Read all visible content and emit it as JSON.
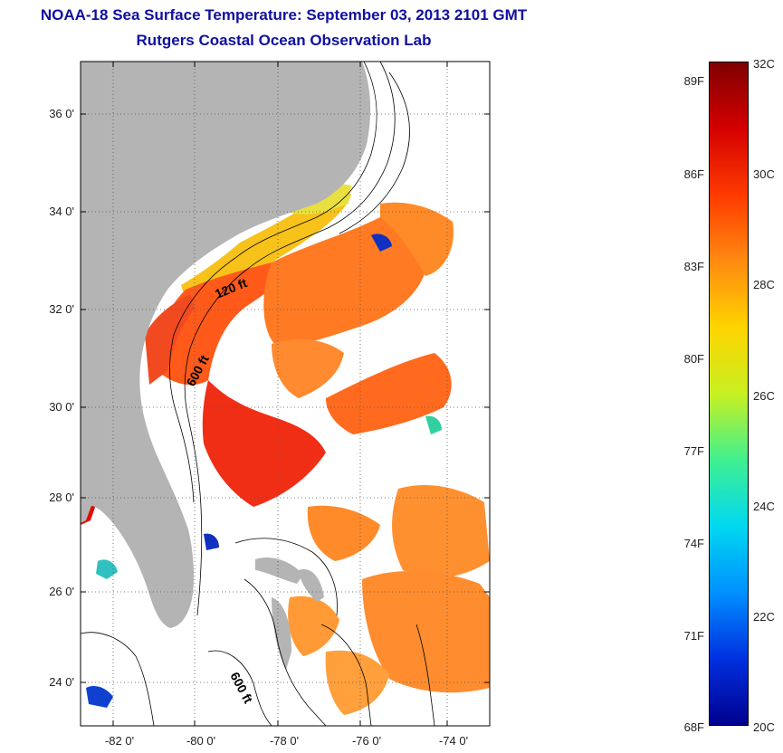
{
  "title": {
    "line1": "NOAA-18 Sea Surface Temperature:  September 03, 2013 2101 GMT",
    "line2": "Rutgers Coastal Ocean Observation Lab"
  },
  "axes": {
    "lat_labels": [
      "36 0'",
      "34 0'",
      "32 0'",
      "30 0'",
      "28 0'",
      "26 0'",
      "24 0'"
    ],
    "lon_labels": [
      "-82 0'",
      "-80 0'",
      "-78 0'",
      "-76 0'",
      "-74 0'"
    ]
  },
  "contours": {
    "label_120": "120 ft",
    "label_600a": "600 ft",
    "label_600b": "600 ft"
  },
  "colorbar": {
    "fahrenheit": [
      "89F",
      "86F",
      "83F",
      "80F",
      "77F",
      "74F",
      "71F",
      "68F"
    ],
    "celsius": [
      "32C",
      "30C",
      "28C",
      "26C",
      "24C",
      "22C",
      "20C"
    ],
    "colors": [
      "#7f0000",
      "#d40000",
      "#ff3a00",
      "#ff8a10",
      "#ffd400",
      "#c8f020",
      "#40f090",
      "#00d8f0",
      "#0090ff",
      "#0030e0",
      "#00008f"
    ]
  },
  "colors": {
    "land": "#b4b4b4",
    "title": "#1010a0"
  }
}
